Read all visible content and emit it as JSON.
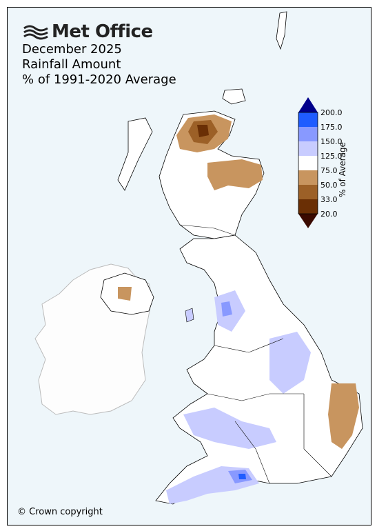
{
  "logo": {
    "text": "Met Office",
    "icon": "met-office-wave-icon"
  },
  "title": {
    "line1": "December 2025",
    "line2": "Rainfall Amount",
    "line3": "% of 1991-2020 Average"
  },
  "legend": {
    "title": "% of Average",
    "ticks": [
      "200.0",
      "175.0",
      "150.0",
      "125.0",
      "75.0",
      "50.0",
      "33.0",
      "20.0"
    ],
    "colors": {
      "over200": "#00008b",
      "b175_200": "#1f5cff",
      "b150_175": "#8899ff",
      "b125_150": "#c8ccff",
      "b75_125": "#ffffff",
      "b50_75": "#c8955f",
      "b33_50": "#9c6027",
      "b20_33": "#6a2f05",
      "under20": "#3a0a00"
    }
  },
  "copyright": "© Crown copyright",
  "colors": {
    "sea": "#eef6fa",
    "ireland": "#fdfdfd",
    "coast": "#000000"
  }
}
